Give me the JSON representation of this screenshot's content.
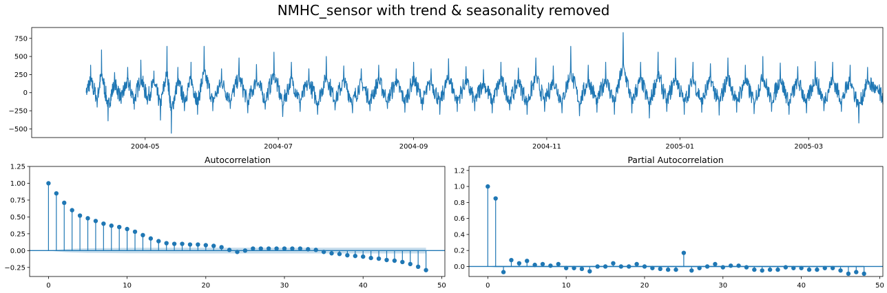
{
  "figure": {
    "title": "NMHC_sensor with trend & seasonality removed"
  },
  "colors": {
    "series": "#1f77b4",
    "conf_band": "#1f77b4",
    "axis": "#000000",
    "background": "#ffffff"
  },
  "chart_data": [
    {
      "type": "line",
      "title": "",
      "xlabel": "",
      "ylabel": "",
      "x_axis": "date",
      "x_range": [
        "2004-03-10",
        "2005-04-04"
      ],
      "x_ticks": [
        "2004-05",
        "2004-07",
        "2004-09",
        "2004-11",
        "2005-01",
        "2005-03"
      ],
      "ylim": [
        -620,
        900
      ],
      "y_ticks": [
        -500,
        -250,
        0,
        250,
        500,
        750
      ],
      "y_tick_labels": [
        "−500",
        "−250",
        "0",
        "250",
        "500",
        "750"
      ],
      "grid": false,
      "series": [
        {
          "values_note_sampled": true,
          "x": [
            "2004-04-04",
            "2004-04-06",
            "2004-04-09",
            "2004-04-11",
            "2004-04-14",
            "2004-04-17",
            "2004-04-20",
            "2004-04-23",
            "2004-04-26",
            "2004-04-29",
            "2004-05-02",
            "2004-05-05",
            "2004-05-08",
            "2004-05-11",
            "2004-05-13",
            "2004-05-16",
            "2004-05-19",
            "2004-05-22",
            "2004-05-25",
            "2004-05-28",
            "2004-06-01",
            "2004-06-05",
            "2004-06-09",
            "2004-06-13",
            "2004-06-17",
            "2004-06-21",
            "2004-06-25",
            "2004-06-29",
            "2004-07-03",
            "2004-07-07",
            "2004-07-11",
            "2004-07-15",
            "2004-07-19",
            "2004-07-23",
            "2004-07-27",
            "2004-07-31",
            "2004-08-04",
            "2004-08-08",
            "2004-08-12",
            "2004-08-16",
            "2004-08-20",
            "2004-08-24",
            "2004-08-28",
            "2004-09-01",
            "2004-09-05",
            "2004-09-09",
            "2004-09-13",
            "2004-09-17",
            "2004-09-21",
            "2004-09-25",
            "2004-09-29",
            "2004-10-03",
            "2004-10-07",
            "2004-10-11",
            "2004-10-15",
            "2004-10-19",
            "2004-10-23",
            "2004-10-27",
            "2004-10-31",
            "2004-11-04",
            "2004-11-08",
            "2004-11-12",
            "2004-11-16",
            "2004-11-20",
            "2004-11-24",
            "2004-11-28",
            "2004-12-02",
            "2004-12-06",
            "2004-12-10",
            "2004-12-14",
            "2004-12-18",
            "2004-12-22",
            "2004-12-26",
            "2004-12-30",
            "2005-01-03",
            "2005-01-07",
            "2005-01-11",
            "2005-01-15",
            "2005-01-19",
            "2005-01-23",
            "2005-01-27",
            "2005-01-31",
            "2005-02-04",
            "2005-02-08",
            "2005-02-12",
            "2005-02-16",
            "2005-02-20",
            "2005-02-24",
            "2005-02-28",
            "2005-03-04",
            "2005-03-08",
            "2005-03-12",
            "2005-03-16",
            "2005-03-20",
            "2005-03-24",
            "2005-03-28",
            "2005-04-01",
            "2005-04-04"
          ],
          "values": [
            0,
            380,
            -200,
            590,
            -390,
            280,
            -150,
            350,
            -230,
            450,
            -160,
            300,
            -380,
            640,
            -560,
            350,
            -250,
            420,
            -300,
            640,
            -250,
            330,
            -220,
            480,
            -280,
            390,
            -230,
            560,
            -330,
            420,
            -260,
            330,
            -300,
            500,
            -240,
            370,
            -280,
            330,
            -250,
            380,
            -220,
            330,
            -270,
            420,
            -240,
            330,
            -300,
            470,
            -260,
            360,
            -250,
            320,
            -280,
            420,
            -240,
            340,
            -300,
            480,
            -260,
            370,
            -280,
            640,
            -320,
            380,
            -270,
            420,
            -300,
            830,
            -280,
            420,
            -350,
            560,
            -260,
            480,
            -300,
            420,
            -270,
            400,
            -310,
            480,
            -270,
            380,
            -290,
            500,
            -260,
            410,
            -300,
            360,
            -280,
            430,
            -250,
            420,
            -260,
            380,
            -420,
            350,
            80,
            -160
          ]
        }
      ]
    },
    {
      "type": "stem",
      "title": "Autocorrelation",
      "xlabel": "",
      "ylabel": "",
      "xlim": [
        -2.4,
        50.4
      ],
      "ylim": [
        -0.385,
        1.25
      ],
      "x_ticks": [
        0,
        10,
        20,
        30,
        40,
        50
      ],
      "y_ticks": [
        -0.25,
        0.0,
        0.25,
        0.5,
        0.75,
        1.0,
        1.25
      ],
      "y_tick_labels": [
        "−0.25",
        "0.00",
        "0.25",
        "0.50",
        "0.75",
        "1.00",
        "1.25"
      ],
      "grid": false,
      "x": [
        0,
        1,
        2,
        3,
        4,
        5,
        6,
        7,
        8,
        9,
        10,
        11,
        12,
        13,
        14,
        15,
        16,
        17,
        18,
        19,
        20,
        21,
        22,
        23,
        24,
        25,
        26,
        27,
        28,
        29,
        30,
        31,
        32,
        33,
        34,
        35,
        36,
        37,
        38,
        39,
        40,
        41,
        42,
        43,
        44,
        45,
        46,
        47,
        48
      ],
      "values": [
        1.0,
        0.85,
        0.71,
        0.6,
        0.52,
        0.48,
        0.44,
        0.4,
        0.37,
        0.35,
        0.32,
        0.28,
        0.23,
        0.18,
        0.14,
        0.11,
        0.1,
        0.1,
        0.09,
        0.09,
        0.08,
        0.07,
        0.05,
        0.01,
        -0.02,
        0.0,
        0.03,
        0.03,
        0.03,
        0.03,
        0.03,
        0.03,
        0.03,
        0.02,
        0.01,
        -0.02,
        -0.04,
        -0.05,
        -0.07,
        -0.08,
        -0.09,
        -0.11,
        -0.12,
        -0.14,
        -0.15,
        -0.17,
        -0.2,
        -0.24,
        -0.29
      ],
      "confidence_band": {
        "lower": [
          0,
          -0.012,
          -0.022,
          -0.028,
          -0.031,
          -0.034,
          -0.036,
          -0.037,
          -0.038,
          -0.039,
          -0.04,
          -0.041,
          -0.041,
          -0.042,
          -0.042,
          -0.042,
          -0.043,
          -0.043,
          -0.043,
          -0.043,
          -0.043,
          -0.043,
          -0.043,
          -0.043,
          -0.043,
          -0.043,
          -0.043,
          -0.043,
          -0.043,
          -0.043,
          -0.043,
          -0.043,
          -0.043,
          -0.043,
          -0.043,
          -0.043,
          -0.043,
          -0.043,
          -0.043,
          -0.043,
          -0.043,
          -0.043,
          -0.043,
          -0.043,
          -0.043,
          -0.043,
          -0.043,
          -0.043,
          -0.043
        ],
        "upper": [
          0,
          0.012,
          0.022,
          0.028,
          0.031,
          0.034,
          0.036,
          0.037,
          0.038,
          0.039,
          0.04,
          0.041,
          0.041,
          0.042,
          0.042,
          0.042,
          0.043,
          0.043,
          0.043,
          0.043,
          0.043,
          0.043,
          0.043,
          0.043,
          0.043,
          0.043,
          0.043,
          0.043,
          0.043,
          0.043,
          0.043,
          0.043,
          0.043,
          0.043,
          0.043,
          0.043,
          0.043,
          0.043,
          0.043,
          0.043,
          0.043,
          0.043,
          0.043,
          0.043,
          0.043,
          0.043,
          0.043,
          0.043,
          0.043
        ]
      }
    },
    {
      "type": "stem",
      "title": "Partial Autocorrelation",
      "xlabel": "",
      "ylabel": "",
      "xlim": [
        -2.4,
        50.4
      ],
      "ylim": [
        -0.125,
        1.25
      ],
      "x_ticks": [
        0,
        10,
        20,
        30,
        40,
        50
      ],
      "y_ticks": [
        0.0,
        0.2,
        0.4,
        0.6,
        0.8,
        1.0,
        1.2
      ],
      "y_tick_labels": [
        "0.0",
        "0.2",
        "0.4",
        "0.6",
        "0.8",
        "1.0",
        "1.2"
      ],
      "grid": false,
      "x": [
        0,
        1,
        2,
        3,
        4,
        5,
        6,
        7,
        8,
        9,
        10,
        11,
        12,
        13,
        14,
        15,
        16,
        17,
        18,
        19,
        20,
        21,
        22,
        23,
        24,
        25,
        26,
        27,
        28,
        29,
        30,
        31,
        32,
        33,
        34,
        35,
        36,
        37,
        38,
        39,
        40,
        41,
        42,
        43,
        44,
        45,
        46,
        47,
        48
      ],
      "values": [
        1.0,
        0.85,
        -0.07,
        0.08,
        0.04,
        0.07,
        0.02,
        0.03,
        0.01,
        0.03,
        -0.02,
        -0.02,
        -0.03,
        -0.06,
        0.0,
        0.0,
        0.04,
        0.0,
        0.0,
        0.03,
        0.0,
        -0.02,
        -0.03,
        -0.04,
        -0.04,
        0.17,
        -0.05,
        -0.02,
        0.0,
        0.03,
        -0.01,
        0.01,
        0.01,
        -0.01,
        -0.04,
        -0.05,
        -0.04,
        -0.04,
        -0.01,
        -0.02,
        -0.02,
        -0.04,
        -0.04,
        -0.02,
        -0.02,
        -0.05,
        -0.09,
        -0.07,
        -0.09
      ],
      "confidence_band": {
        "lower": [
          0,
          -0.012,
          -0.012,
          -0.012,
          -0.012,
          -0.012,
          -0.012,
          -0.012,
          -0.012,
          -0.012,
          -0.012,
          -0.012,
          -0.012,
          -0.012,
          -0.012,
          -0.012,
          -0.012,
          -0.012,
          -0.012,
          -0.012,
          -0.012,
          -0.012,
          -0.012,
          -0.012,
          -0.012,
          -0.012,
          -0.012,
          -0.012,
          -0.012,
          -0.012,
          -0.012,
          -0.012,
          -0.012,
          -0.012,
          -0.012,
          -0.012,
          -0.012,
          -0.012,
          -0.012,
          -0.012,
          -0.012,
          -0.012,
          -0.012,
          -0.012,
          -0.012,
          -0.012,
          -0.012,
          -0.012,
          -0.012
        ],
        "upper": [
          0,
          0.012,
          0.012,
          0.012,
          0.012,
          0.012,
          0.012,
          0.012,
          0.012,
          0.012,
          0.012,
          0.012,
          0.012,
          0.012,
          0.012,
          0.012,
          0.012,
          0.012,
          0.012,
          0.012,
          0.012,
          0.012,
          0.012,
          0.012,
          0.012,
          0.012,
          0.012,
          0.012,
          0.012,
          0.012,
          0.012,
          0.012,
          0.012,
          0.012,
          0.012,
          0.012,
          0.012,
          0.012,
          0.012,
          0.012,
          0.012,
          0.012,
          0.012,
          0.012,
          0.012,
          0.012,
          0.012,
          0.012,
          0.012
        ]
      }
    }
  ]
}
